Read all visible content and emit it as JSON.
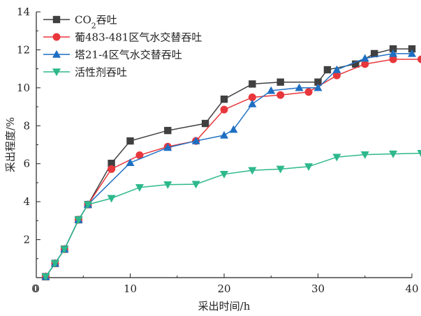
{
  "chart_data": {
    "type": "line",
    "xlabel": "采出时间/h",
    "ylabel": "采出程度/%",
    "xlim": [
      0,
      40
    ],
    "ylim": [
      0,
      14
    ],
    "xticks": [
      0,
      10,
      20,
      30,
      40
    ],
    "yticks": [
      2,
      4,
      6,
      8,
      10,
      12,
      14
    ],
    "grid": false,
    "legend_position": "top-left",
    "series": [
      {
        "name": "CO2吞吐",
        "legend_main": "CO",
        "legend_sub": "2",
        "legend_rest": "吞吐",
        "color": "#404040",
        "marker": "square",
        "x": [
          1,
          2,
          3,
          4.5,
          5.5,
          8,
          10,
          14,
          18,
          20,
          23,
          26,
          30,
          31,
          34,
          36,
          38,
          40
        ],
        "y": [
          0.05,
          0.75,
          1.5,
          3.05,
          3.85,
          6.02,
          7.2,
          7.75,
          8.12,
          9.4,
          10.2,
          10.3,
          10.3,
          10.95,
          11.25,
          11.8,
          12.05,
          12.05
        ]
      },
      {
        "name": "葡483-481区气水交替吞吐",
        "color": "#e8373c",
        "marker": "circle",
        "x": [
          1,
          2,
          3,
          4.5,
          5.5,
          8,
          11,
          14,
          17,
          20,
          23,
          26,
          29,
          32,
          35,
          38,
          41
        ],
        "y": [
          0.05,
          0.75,
          1.5,
          3.05,
          3.85,
          5.72,
          6.45,
          6.9,
          7.2,
          8.85,
          9.5,
          9.62,
          9.78,
          10.65,
          11.25,
          11.5,
          11.5
        ]
      },
      {
        "name": "塔21-4区气水交替吞吐",
        "color": "#1e6fc2",
        "marker": "triangle-up",
        "x": [
          1,
          2,
          3,
          4.5,
          5.5,
          10,
          14,
          17,
          20,
          21,
          23,
          25,
          28,
          30,
          32,
          35,
          38,
          40
        ],
        "y": [
          0.05,
          0.75,
          1.5,
          3.05,
          3.85,
          6.05,
          6.85,
          7.2,
          7.5,
          7.8,
          9.15,
          9.85,
          10.0,
          10.0,
          10.95,
          11.55,
          11.8,
          11.8
        ]
      },
      {
        "name": "活性剂吞吐",
        "color": "#2db88c",
        "marker": "triangle-down",
        "x": [
          1,
          2,
          3,
          4.5,
          5.5,
          8,
          11,
          14,
          17,
          20,
          23,
          26,
          29,
          32,
          35,
          38,
          41
        ],
        "y": [
          0.05,
          0.75,
          1.5,
          3.05,
          3.85,
          4.18,
          4.75,
          4.9,
          4.92,
          5.45,
          5.65,
          5.72,
          5.85,
          6.35,
          6.48,
          6.52,
          6.55
        ]
      }
    ]
  }
}
